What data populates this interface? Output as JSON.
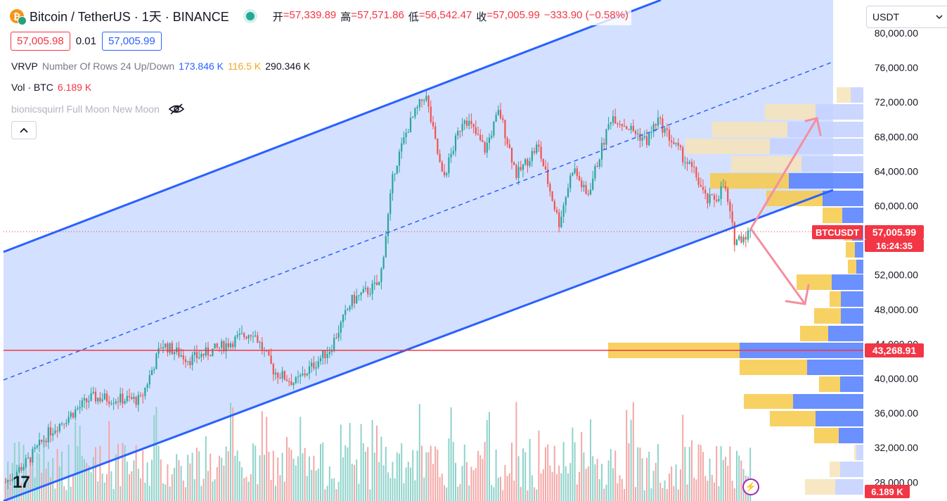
{
  "header": {
    "title": "Bitcoin / TetherUS · 1天 · BINANCE",
    "ohlc": [
      {
        "key": "开",
        "value": "57,339.89"
      },
      {
        "key": "高",
        "value": "57,571.86"
      },
      {
        "key": "低",
        "value": "56,542.47"
      },
      {
        "key": "收",
        "value": "57,005.99"
      }
    ],
    "change": "−333.90 (−0.58%)"
  },
  "prices": {
    "bid": "57,005.98",
    "spread": "0.01",
    "ask": "57,005.99"
  },
  "indicators": {
    "vrvp": {
      "name": "VRVP",
      "params": "Number Of Rows 24 Up/Down",
      "v1": "173.846 K",
      "v2": "116.5 K",
      "v3": "290.346 K"
    },
    "vol": {
      "name": "Vol · BTC",
      "value": "6.189 K"
    },
    "moon": {
      "name": "bionicsquirrl Full Moon New Moon"
    }
  },
  "currency_select": {
    "value": "USDT"
  },
  "price_axis": {
    "ticks": [
      "80,000.00",
      "76,000.00",
      "72,000.00",
      "68,000.00",
      "64,000.00",
      "60,000.00",
      "56,000.00",
      "52,000.00",
      "48,000.00",
      "44,000.00",
      "40,000.00",
      "36,000.00",
      "32,000.00",
      "28,000.00"
    ],
    "symbol_label": "BTCUSDT",
    "last_price": "57,005.99",
    "countdown": "16:24:35",
    "hline_price": "43,268.91",
    "volume_label": "6.189 K"
  },
  "colors": {
    "up": "#26a69a",
    "down": "#ef5350",
    "channel": "#2962ff",
    "hline": "#f23645",
    "vp_up": "#f7c948",
    "vp_down": "#2962ff"
  },
  "icons": {
    "coin": "bitcoin-icon",
    "eye": "eye-off-icon",
    "collapse": "chevron-up-icon",
    "bolt": "lightning-icon",
    "logo": "tradingview-logo"
  }
}
